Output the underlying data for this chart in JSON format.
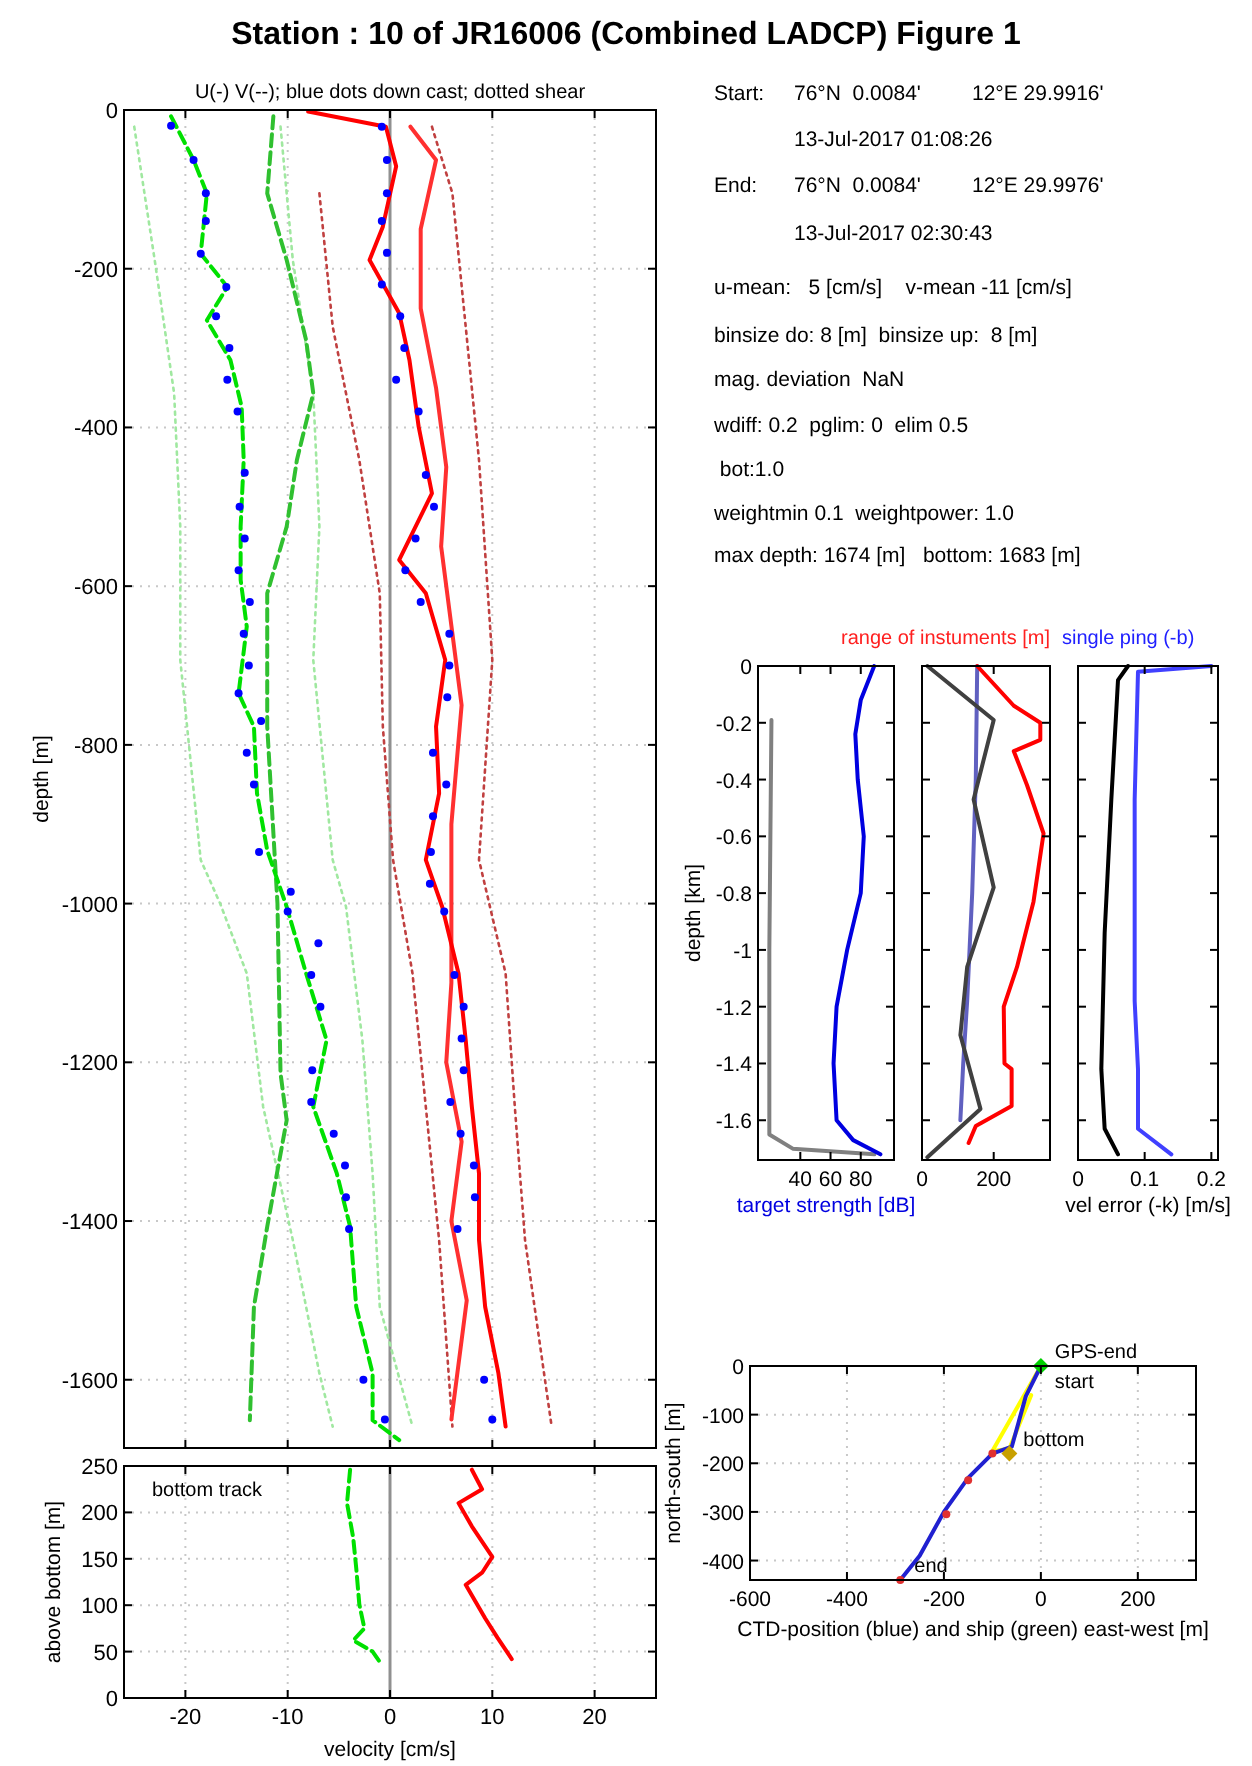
{
  "chart_data": [
    {
      "type": "line",
      "title": "Station : 10 of JR16006 (Combined LADCP)  Figure 1",
      "subtitle": "U(-) V(--); blue dots down cast; dotted shear",
      "ylabel": "depth [m]",
      "xlim": [
        -26,
        26
      ],
      "ylim": [
        -1686,
        0
      ],
      "xticks": [
        -20,
        -10,
        0,
        10,
        20
      ],
      "yticks": [
        -1600,
        -1400,
        -1200,
        -1000,
        -800,
        -600,
        -400,
        -200,
        0
      ],
      "grid": true,
      "tick_labels": "y",
      "ref_lines": [
        {
          "axis": "x",
          "value": 0,
          "color": "#909090"
        }
      ],
      "series": [
        {
          "color": "#a0e8a0",
          "line_style": "dotted",
          "x": [
            -25,
            -23,
            -21.1,
            -20.5,
            -20.5,
            -18.5,
            -16.6,
            -14,
            -12.4,
            -9.5,
            -6.9,
            -5.6
          ],
          "values": [
            -21,
            -189,
            -357,
            -525,
            -693,
            -945,
            -1000,
            -1088,
            -1256,
            -1424,
            -1592,
            -1659
          ]
        },
        {
          "color": "#a0e8a0",
          "line_style": "dotted",
          "x": [
            -10.7,
            -9.5,
            -7.5,
            -6.9,
            -7.5,
            -5.6,
            -4.3,
            -2.7,
            -1.7,
            -1,
            2.2
          ],
          "values": [
            -21,
            -189,
            -357,
            -525,
            -693,
            -945,
            -1004,
            -1172,
            -1340,
            -1508,
            -1659
          ]
        },
        {
          "color": "#c04040",
          "line_style": "dotted",
          "x": [
            -6.9,
            -5.6,
            -3,
            -1,
            -0.7,
            0.3,
            2.2,
            3.5,
            4.8,
            6.1
          ],
          "values": [
            -105,
            -273,
            -441,
            -609,
            -777,
            -945,
            -1088,
            -1256,
            -1424,
            -1659
          ]
        },
        {
          "color": "#c04040",
          "line_style": "dotted",
          "x": [
            4.1,
            6.1,
            7.4,
            8.7,
            10,
            8.7,
            11.3,
            12.2,
            13.2,
            15.8
          ],
          "values": [
            -21,
            -105,
            -273,
            -441,
            -693,
            -945,
            -1088,
            -1256,
            -1424,
            -1659
          ]
        },
        {
          "color": "#30c030",
          "line_style": "dashed",
          "x": [
            -11.4,
            -12,
            -10.1,
            -8.2,
            -7.5,
            -9.1,
            -10.1,
            -12,
            -12,
            -11,
            -10.7,
            -10.1,
            -12,
            -13.3,
            -13.7
          ],
          "values": [
            -8,
            -105,
            -189,
            -290,
            -357,
            -441,
            -525,
            -609,
            -777,
            -1000,
            -1214,
            -1273,
            -1407,
            -1508,
            -1651
          ]
        },
        {
          "color": "#00e000",
          "line_style": "dashed",
          "x": [
            -21.4,
            -19.2,
            -17.9,
            -18.5,
            -15.9,
            -17.9,
            -15.6,
            -14.5,
            -14.3,
            -14.6,
            -14.6,
            -14,
            -14.8,
            -13.3,
            -13,
            -12,
            -10.1,
            -8.2,
            -6.2,
            -7.5,
            -5.2,
            -3.9,
            -3.3,
            -1.7,
            -1.7,
            0.9
          ],
          "values": [
            -8,
            -63,
            -105,
            -181,
            -223,
            -265,
            -315,
            -374,
            -441,
            -525,
            -592,
            -651,
            -735,
            -777,
            -861,
            -933,
            -1004,
            -1088,
            -1172,
            -1256,
            -1340,
            -1407,
            -1508,
            -1592,
            -1651,
            -1676
          ]
        },
        {
          "color": "#ff3030",
          "line_style": "solid",
          "x": [
            2,
            4.5,
            3,
            3,
            4.5,
            5.5,
            5,
            6,
            7,
            6,
            6,
            6,
            5.5,
            7,
            6,
            7.5,
            6
          ],
          "values": [
            -21,
            -63,
            -150,
            -250,
            -350,
            -450,
            -550,
            -650,
            -750,
            -900,
            -1000,
            -1100,
            -1200,
            -1300,
            -1400,
            -1500,
            -1650
          ]
        },
        {
          "color": "#ff0000",
          "line_style": "solid",
          "x": [
            -8,
            -0.4,
            0.6,
            -0.7,
            -2,
            0.9,
            1.9,
            2.8,
            4.1,
            0.9,
            3.5,
            5.4,
            4.5,
            4.8,
            3.5,
            5.1,
            6.7,
            7.4,
            8,
            8.7,
            8.7,
            9.3,
            10.6,
            11.3
          ],
          "values": [
            -2,
            -21,
            -71,
            -147,
            -189,
            -256,
            -315,
            -399,
            -483,
            -567,
            -609,
            -693,
            -777,
            -861,
            -945,
            -1004,
            -1088,
            -1172,
            -1256,
            -1340,
            -1424,
            -1508,
            -1592,
            -1659
          ]
        },
        {
          "type": "scatter",
          "marker": "circle",
          "color": "#0000ff",
          "x": [
            -21.4,
            -19.2,
            -18,
            -18,
            -18.5,
            -16,
            -17,
            -15.7,
            -15.9,
            -14.9,
            -14.2,
            -14.7,
            -14.2,
            -14.8,
            -13.7,
            -14.3,
            -13.8,
            -14.8,
            -12.6,
            -14,
            -13.3,
            -12.8,
            -9.7,
            -10,
            -7,
            -7.7,
            -6.8,
            -7.6,
            -7.7,
            -5.5,
            -4.4,
            -4.3,
            -4,
            -2.6,
            -0.5,
            -0.8,
            -0.3,
            -0.3,
            -0.8,
            -0.3,
            -0.8,
            1,
            1.4,
            0.6,
            2.8,
            3.5,
            4.3,
            2.5,
            1.5,
            3,
            5.8,
            5.8,
            5.6,
            4.2,
            5.5,
            4.2,
            4,
            3.9,
            5.3,
            6.3,
            7.2,
            7,
            7.2,
            5.9,
            6.9,
            8.2,
            8.3,
            6.6,
            9.2,
            10
          ],
          "values": [
            -20,
            -63,
            -105,
            -140,
            -181,
            -223,
            -260,
            -300,
            -340,
            -380,
            -457,
            -500,
            -540,
            -580,
            -620,
            -660,
            -700,
            -735,
            -770,
            -810,
            -850,
            -935,
            -985,
            -1010,
            -1050,
            -1090,
            -1130,
            -1210,
            -1250,
            -1290,
            -1330,
            -1370,
            -1410,
            -1600,
            -1650,
            -21,
            -63,
            -105,
            -140,
            -180,
            -220,
            -260,
            -300,
            -340,
            -380,
            -460,
            -500,
            -540,
            -580,
            -620,
            -660,
            -700,
            -740,
            -810,
            -850,
            -890,
            -935,
            -975,
            -1010,
            -1090,
            -1130,
            -1170,
            -1210,
            -1250,
            -1290,
            -1330,
            -1370,
            -1410,
            -1600,
            -1650
          ]
        }
      ]
    },
    {
      "type": "line",
      "xlabel": "velocity [cm/s]",
      "ylabel": "above bottom [m]",
      "xlim": [
        -26,
        26
      ],
      "ylim": [
        0,
        250
      ],
      "xticks": [
        -20,
        -10,
        0,
        10,
        20
      ],
      "yticks": [
        0,
        50,
        100,
        150,
        200,
        250
      ],
      "grid": true,
      "annotations": [
        "bottom track"
      ],
      "ref_lines": [
        {
          "axis": "x",
          "value": 0,
          "color": "#909090"
        }
      ],
      "series": [
        {
          "color": "#00e000",
          "line_style": "dashed",
          "x": [
            -3.9,
            -4.2,
            -3.6,
            -3.3,
            -3,
            -2.5,
            -3.6,
            -1.7,
            -1
          ],
          "values": [
            246,
            210,
            173,
            140,
            101,
            75,
            62,
            50,
            39
          ]
        },
        {
          "color": "#ff0000",
          "line_style": "solid",
          "x": [
            8,
            9,
            6.7,
            8,
            10,
            9,
            7.4,
            9.3,
            10.5,
            11.9
          ],
          "values": [
            246,
            225,
            210,
            185,
            152,
            135,
            122,
            86,
            65,
            42
          ]
        }
      ]
    },
    {
      "type": "line",
      "xlabel": "target strength [dB]",
      "ylabel": "depth [km]",
      "xlim": [
        12,
        102
      ],
      "ylim": [
        -1.74,
        0
      ],
      "xticks": [
        40,
        60,
        80
      ],
      "yticks": [
        -1.6,
        -1.4,
        -1.2,
        -1,
        -0.8,
        -0.6,
        -0.4,
        -0.2,
        0
      ],
      "series": [
        {
          "color": "#808080",
          "line_style": "solid",
          "x": [
            20.9,
            19.5,
            19.5,
            35,
            89
          ],
          "values": [
            -0.19,
            -1,
            -1.65,
            -1.7,
            -1.72
          ]
        },
        {
          "color": "#0000e0",
          "line_style": "solid",
          "x": [
            88.9,
            80,
            76.4,
            78,
            82,
            80,
            71,
            64,
            62,
            64,
            75,
            93
          ],
          "values": [
            0,
            -0.12,
            -0.24,
            -0.4,
            -0.6,
            -0.8,
            -1,
            -1.2,
            -1.4,
            -1.6,
            -1.67,
            -1.72
          ]
        }
      ]
    },
    {
      "type": "line",
      "annotations": [
        "range of instuments [m]"
      ],
      "xlim": [
        0,
        357
      ],
      "ylim": [
        -1.74,
        0
      ],
      "xticks": [
        0,
        200
      ],
      "yticks": [
        -1.6,
        -1.4,
        -1.2,
        -1,
        -0.8,
        -0.6,
        -0.4,
        -0.2,
        0
      ],
      "tick_labels": "x",
      "series": [
        {
          "color": "#6060c0",
          "line_style": "solid",
          "x": [
            154,
            150,
            140,
            126,
            115,
            107
          ],
          "values": [
            0,
            -0.4,
            -0.8,
            -1.18,
            -1.4,
            -1.6
          ]
        },
        {
          "color": "#404040",
          "line_style": "solid",
          "x": [
            15,
            200,
            144,
            200,
            126,
            107,
            163,
            15
          ],
          "values": [
            0,
            -0.19,
            -0.47,
            -0.78,
            -1.06,
            -1.3,
            -1.56,
            -1.73
          ]
        },
        {
          "color": "#ff0000",
          "line_style": "solid",
          "x": [
            154,
            256,
            330,
            330,
            256,
            293,
            339,
            311,
            265,
            228,
            230,
            250,
            250,
            150,
            130
          ],
          "values": [
            0,
            -0.14,
            -0.2,
            -0.26,
            -0.3,
            -0.42,
            -0.59,
            -0.83,
            -1.06,
            -1.2,
            -1.4,
            -1.42,
            -1.55,
            -1.62,
            -1.68
          ]
        }
      ]
    },
    {
      "type": "line",
      "xlabel": "vel error (-k) [m/s]",
      "annotations": [
        "single ping (-b)"
      ],
      "xlim": [
        0,
        0.21
      ],
      "ylim": [
        -1.74,
        0
      ],
      "xticks": [
        0,
        0.1,
        0.2
      ],
      "yticks": [
        -1.6,
        -1.4,
        -1.2,
        -1,
        -0.8,
        -0.6,
        -0.4,
        -0.2,
        0
      ],
      "tick_labels": "x",
      "series": [
        {
          "color": "#000000",
          "line_style": "solid",
          "x": [
            0.075,
            0.06,
            0.05,
            0.04,
            0.035,
            0.04,
            0.06
          ],
          "values": [
            0,
            -0.05,
            -0.47,
            -0.94,
            -1.42,
            -1.63,
            -1.72
          ]
        },
        {
          "color": "#4040ff",
          "line_style": "solid",
          "x": [
            0.2,
            0.09,
            0.085,
            0.085,
            0.09,
            0.09,
            0.14
          ],
          "values": [
            0,
            -0.02,
            -0.47,
            -1.18,
            -1.42,
            -1.63,
            -1.72
          ]
        }
      ]
    },
    {
      "type": "line",
      "xlabel": "CTD-position (blue) and ship (green) east-west [m]",
      "ylabel": "north-south [m]",
      "xlim": [
        -600,
        320
      ],
      "ylim": [
        -440,
        0
      ],
      "xticks": [
        -600,
        -400,
        -200,
        0,
        200
      ],
      "yticks": [
        -400,
        -300,
        -200,
        -100,
        0
      ],
      "grid": true,
      "annotations": [
        {
          "text": "GPS-end",
          "x": 0,
          "y": 0
        },
        {
          "text": "start",
          "x": 0,
          "y": 0
        },
        {
          "text": "bottom",
          "x": -65,
          "y": -180
        },
        {
          "text": "end",
          "x": -290,
          "y": -440
        }
      ],
      "series": [
        {
          "color": "#ffff00",
          "line_style": "solid",
          "x": [
            0,
            -100,
            -65,
            -20
          ],
          "values": [
            0,
            -175,
            -170,
            -60
          ]
        },
        {
          "color": "#2020d0",
          "line_style": "solid",
          "x": [
            0,
            -31,
            -60,
            -100,
            -150,
            -200,
            -250,
            -290
          ],
          "values": [
            0,
            -62,
            -166,
            -180,
            -230,
            -300,
            -390,
            -440
          ]
        },
        {
          "type": "scatter",
          "marker": "circle",
          "color": "#e03030",
          "x": [
            -100,
            -150,
            -195,
            -290
          ],
          "values": [
            -180,
            -235,
            -305,
            -440
          ]
        },
        {
          "type": "scatter",
          "marker": "diamond",
          "color": "#c8a000",
          "x": [
            -65
          ],
          "values": [
            -180
          ]
        },
        {
          "type": "scatter",
          "marker": "diamond",
          "color": "#00d000",
          "x": [
            0
          ],
          "values": [
            0
          ]
        }
      ]
    },
    {
      "type": "other",
      "annotations": [
        "Start:",
        "76°N  0.0084'",
        "12°E 29.9916'",
        "13-Jul-2017 01:08:26",
        "End:",
        "76°N  0.0084'",
        "12°E 29.9976'",
        "13-Jul-2017 02:30:43",
        "u-mean:   5 [cm/s]    v-mean -11 [cm/s]",
        "binsize do: 8 [m]  binsize up:  8 [m]",
        "mag. deviation  NaN",
        "wdiff: 0.2  pglim: 0  elim 0.5",
        " bot:1.0",
        "weightmin 0.1  weightpower: 1.0",
        "max depth: 1674 [m]   bottom: 1683 [m]"
      ]
    }
  ]
}
